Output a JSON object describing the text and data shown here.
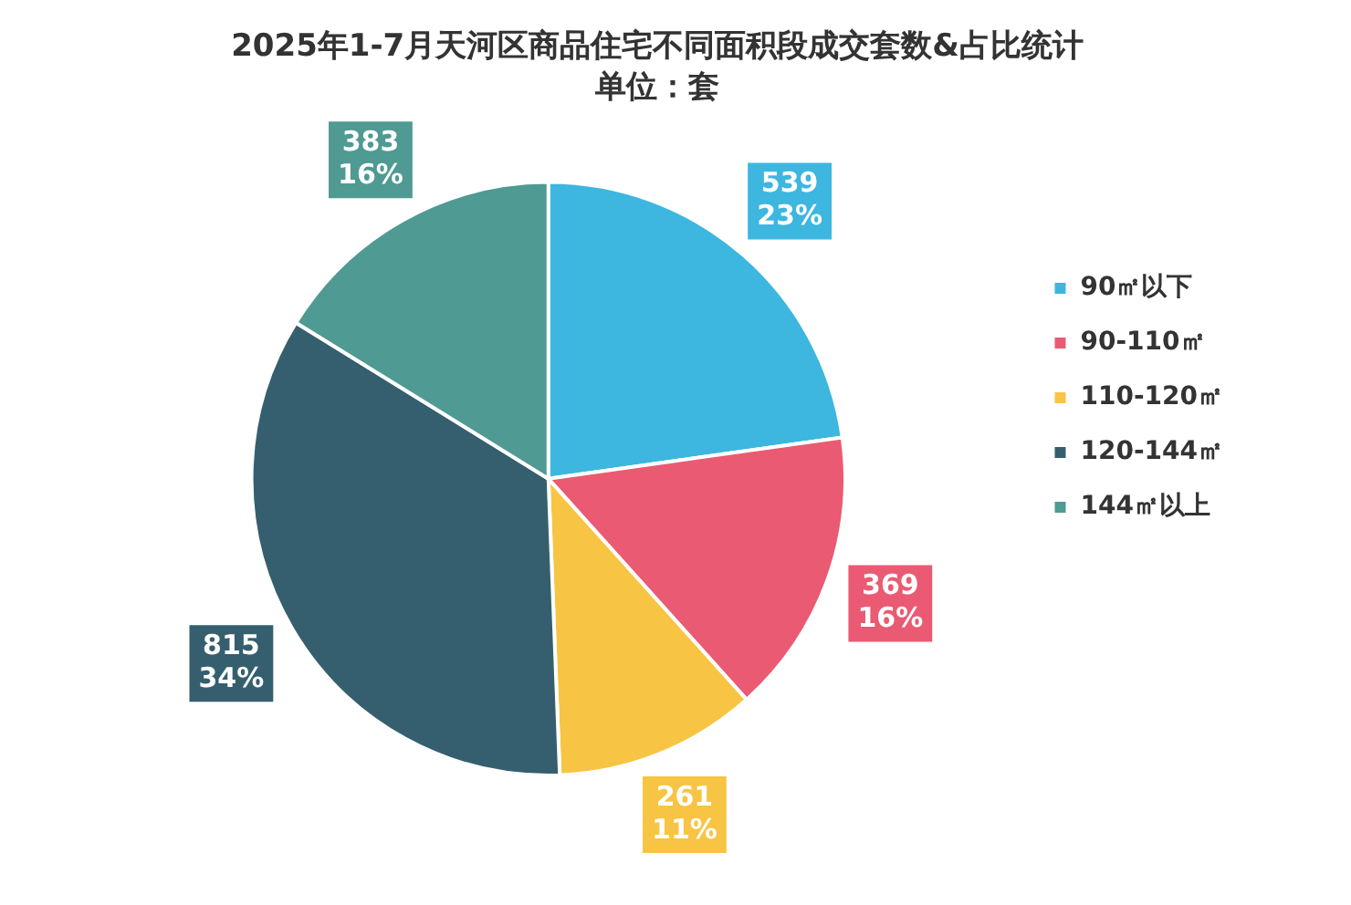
{
  "chart_data": {
    "type": "pie",
    "title": "2025年1-7月天河区商品住宅不同面积段成交套数&占比统计",
    "subtitle": "单位：套",
    "categories": [
      "90㎡以下",
      "90-110㎡",
      "110-120㎡",
      "120-144㎡",
      "144㎡以上"
    ],
    "values": [
      539,
      369,
      261,
      815,
      383
    ],
    "colors": [
      "#3db6e0",
      "#ea5a72",
      "#f8c444",
      "#355f6e",
      "#4f9a92"
    ],
    "value_labels": [
      "539\n23%",
      "369\n16%",
      "261\n11%",
      "815\n34%",
      "383\n16%"
    ],
    "legend": "right"
  }
}
